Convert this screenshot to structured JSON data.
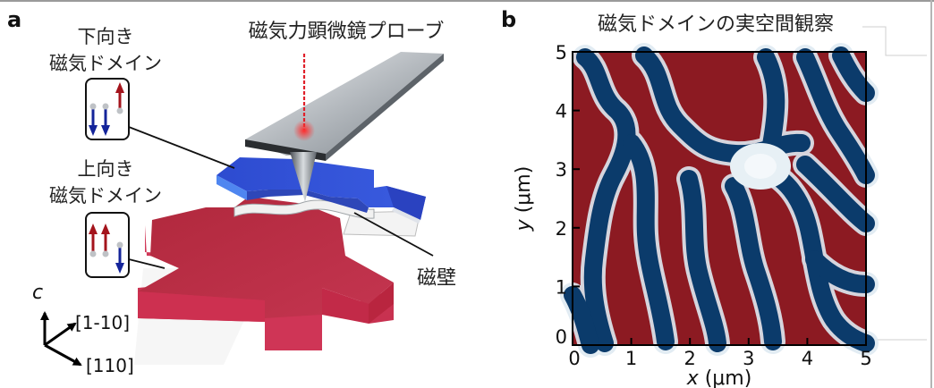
{
  "panel_a": {
    "label": "a",
    "probe_label": "磁気力顕微鏡プローブ",
    "down_domain_line1": "下向き",
    "down_domain_line2": "磁気ドメイン",
    "up_domain_line1": "上向き",
    "up_domain_line2": "磁気ドメイン",
    "wall_label": "磁壁",
    "axis_c": "c",
    "axis_1m10": "[1-10]",
    "axis_110": "[110]"
  },
  "panel_b": {
    "label": "b",
    "title": "磁気ドメインの実空間観察",
    "xlabel_var": "x",
    "xlabel_unit": " (μm)",
    "ylabel_var": "y",
    "ylabel_unit": " (μm)",
    "xticks": [
      "0",
      "1",
      "2",
      "3",
      "4",
      "5"
    ],
    "yticks": [
      "0",
      "1",
      "2",
      "3",
      "4",
      "5"
    ]
  },
  "colors": {
    "domain_up": "#8c1a22",
    "domain_down": "#0b3b6b",
    "wall": "#e9f1f6",
    "probe": "#9ca3aa",
    "laser": "#e0202a",
    "arrow_up": "#a4141c",
    "arrow_down": "#14249a"
  },
  "chart_data": {
    "type": "heatmap",
    "title": "磁気ドメインの実空間観察",
    "xlabel": "x (μm)",
    "ylabel": "y (μm)",
    "xlim": [
      0,
      5
    ],
    "ylim": [
      0,
      5
    ],
    "colormap": [
      "#8c1a22",
      "#e9f1f6",
      "#0b3b6b"
    ]
  }
}
